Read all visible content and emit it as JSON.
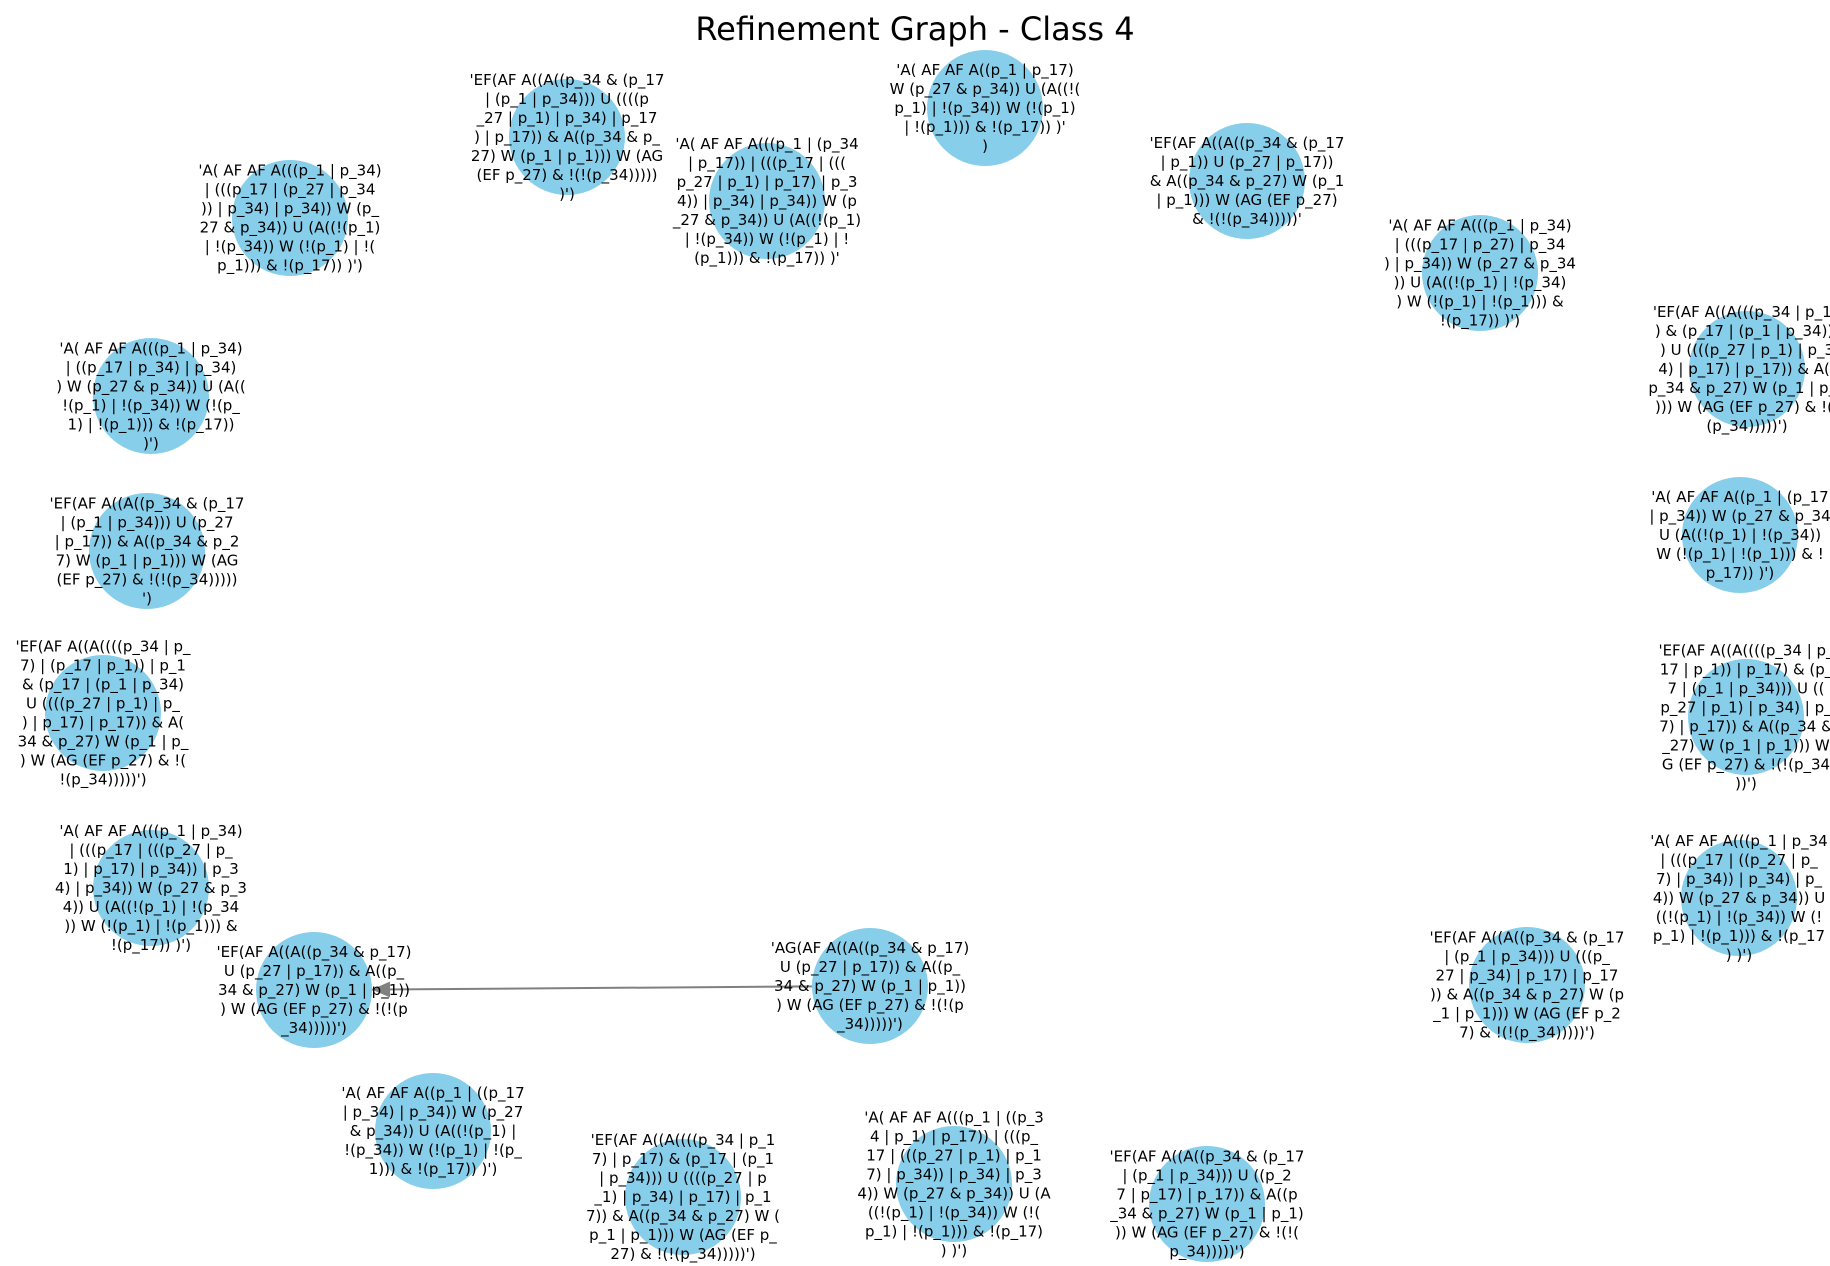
{
  "graph": {
    "title": "Refinement Graph - Class 4",
    "node_color": "#87ceeb",
    "edge_color": "#808080",
    "nodes": [
      {
        "id": "n0",
        "lines": [
          "'A( AF AF A((p_1 | p_17)",
          "W (p_27 & p_34)) U (A((!(",
          "p_1) | !(p_34)) W (!(p_1)",
          "| !(p_1))) & !(p_17)) )'",
          ")"
        ]
      },
      {
        "id": "n1",
        "lines": [
          "'EF(AF A((A((p_34 & (p_17",
          "| (p_1 | p_34))) U ((((p",
          "_27 | p_1) | p_34) | p_17",
          ") | p_17)) & A((p_34 & p_",
          "27) W (p_1 | p_1))) W (AG",
          "(EF p_27) & !(!(p_34)))))",
          ")')"
        ]
      },
      {
        "id": "n2",
        "lines": [
          "'A( AF AF A(((p_1 | (p_34",
          "| p_17)) | (((p_17 | (((",
          "p_27 | p_1) | p_17) | p_3",
          "4)) | p_34) | p_34)) W (p",
          "_27 & p_34)) U (A((!(p_1)",
          "| !(p_34)) W (!(p_1) | !",
          "(p_1))) & !(p_17)) )'"
        ]
      },
      {
        "id": "n3",
        "lines": [
          "'EF(AF A((A((p_34 & (p_17",
          "| p_1)) U (p_27 | p_17))",
          "& A((p_34 & p_27) W (p_1",
          "| p_1))) W (AG (EF p_27)",
          "& !(!(p_34)))))'"
        ]
      },
      {
        "id": "n4",
        "lines": [
          "'A( AF AF A(((p_1 | p_34)",
          "| (((p_17 | (p_27 | p_34",
          ")) | p_34) | p_34)) W (p_",
          "27 & p_34)) U (A((!(p_1)",
          "| !(p_34)) W (!(p_1) | !(",
          "p_1))) & !(p_17)) )')"
        ]
      },
      {
        "id": "n5",
        "lines": [
          "'A( AF AF A(((p_1 | p_34)",
          "| (((p_17 | p_27) | p_34",
          ") | p_34)) W (p_27 & p_34",
          ")) U (A((!(p_1) | !(p_34)",
          ") W (!(p_1) | !(p_1))) &",
          "!(p_17)) )')"
        ]
      },
      {
        "id": "n6",
        "lines": [
          "'EF(AF A((A(((p_34 | p_17",
          ") & (p_17 | (p_1 | p_34)))",
          ") U ((((p_27 | p_1) | p_3",
          "4) | p_17) | p_17)) & A((",
          "p_34 & p_27) W (p_1 | p_1",
          "))) W (AG (EF p_27) & !(!",
          "(p_34)))))')"
        ]
      },
      {
        "id": "n7",
        "lines": [
          "'A( AF AF A(((p_1 | p_34)",
          "| ((p_17 | p_34) | p_34)",
          ") W (p_27 & p_34)) U (A((",
          "!(p_1) | !(p_34)) W (!(p_",
          "1) | !(p_1))) & !(p_17))",
          ")')"
        ]
      },
      {
        "id": "n8",
        "lines": [
          "'A( AF AF A((p_1 | (p_17",
          "| p_34)) W (p_27 & p_34",
          "U (A((!(p_1) | !(p_34))",
          "W (!(p_1) | !(p_1))) & !",
          "p_17)) )')"
        ]
      },
      {
        "id": "n9",
        "lines": [
          "'EF(AF A((A((p_34 & (p_17",
          "| (p_1 | p_34))) U (p_27",
          "| p_17)) & A((p_34 & p_2",
          "7) W (p_1 | p_1))) W (AG",
          "(EF p_27) & !(!(p_34)))))",
          "')"
        ]
      },
      {
        "id": "n10",
        "lines": [
          "'EF(AF A((A((((p_34 | p_",
          "17 | p_1)) | p_17) & (p_",
          "7 | (p_1 | p_34))) U ((",
          "p_27 | p_1) | p_34) | p_",
          "7) | p_17)) & A((p_34 &",
          "_27) W (p_1 | p_1))) W",
          "G (EF p_27) & !(!(p_34",
          "))')"
        ]
      },
      {
        "id": "n11",
        "lines": [
          "'EF(AF A((A((((p_34 | p_",
          "7) | (p_17 | p_1)) | p_1",
          "& (p_17 | (p_1 | p_34)",
          "U ((((p_27 | p_1) | p_",
          ") | p_17) | p_17)) & A(",
          "34 & p_27) W (p_1 | p_",
          ") W (AG (EF p_27) & !(",
          "!(p_34)))))')"
        ]
      },
      {
        "id": "n12",
        "lines": [
          "'A( AF AF A(((p_1 | p_34",
          "| (((p_17 | ((p_27 | p_",
          "7) | p_34)) | p_34) | p_",
          "4)) W (p_27 & p_34)) U",
          "((!(p_1) | !(p_34)) W (!",
          "p_1) | !(p_1))) & !(p_17",
          ") )')"
        ]
      },
      {
        "id": "n13",
        "lines": [
          "'A( AF AF A(((p_1 | p_34)",
          "| (((p_17 | (((p_27 | p_",
          "1) | p_17) | p_34)) | p_3",
          "4) | p_34)) W (p_27 & p_3",
          "4)) U (A((!(p_1) | !(p_34",
          ")) W (!(p_1) | !(p_1))) &",
          "!(p_17)) )')"
        ]
      },
      {
        "id": "n14",
        "lines": [
          "'EF(AF A((A((p_34 & (p_17",
          "| (p_1 | p_34))) U (((p_",
          "27 | p_34) | p_17) | p_17",
          ")) & A((p_34 & p_27) W (p",
          "_1 | p_1))) W (AG (EF p_2",
          "7) & !(!(p_34)))))')"
        ]
      },
      {
        "id": "n15",
        "lines": [
          "'EF(AF A((A((p_34 & p_17)",
          "U (p_27 | p_17)) & A((p_",
          "34 & p_27) W (p_1 | p_1))",
          ") W (AG (EF p_27) & !(!(p",
          "_34)))))')"
        ]
      },
      {
        "id": "n16",
        "lines": [
          "'AG(AF A((A((p_34 & p_17)",
          "U (p_27 | p_17)) & A((p_",
          "34 & p_27) W (p_1 | p_1))",
          ") W (AG (EF p_27) & !(!(p",
          "_34)))))')"
        ]
      },
      {
        "id": "n17",
        "lines": [
          "'A( AF AF A((p_1 | ((p_17",
          "| p_34) | p_34)) W (p_27",
          "& p_34)) U (A((!(p_1) |",
          "!(p_34)) W (!(p_1) | !(p_",
          "1))) & !(p_17)) )')"
        ]
      },
      {
        "id": "n18",
        "lines": [
          "'EF(AF A((A((((p_34 | p_1",
          "7) | p_17) & (p_17 | (p_1",
          "| p_34))) U ((((p_27 | p",
          "_1) | p_34) | p_17) | p_1",
          "7)) & A((p_34 & p_27) W (",
          "p_1 | p_1))) W (AG (EF p_",
          "27) & !(!(p_34)))))')"
        ]
      },
      {
        "id": "n19",
        "lines": [
          "'A( AF AF A(((p_1 | ((p_3",
          "4 | p_1) | p_17)) | (((p_",
          "17 | (((p_27 | p_1) | p_1",
          "7) | p_34)) | p_34) | p_3",
          "4)) W (p_27 & p_34)) U (A",
          "((!(p_1) | !(p_34)) W (!(",
          "p_1) | !(p_1))) & !(p_17)",
          ") )')"
        ]
      },
      {
        "id": "n20",
        "lines": [
          "'EF(AF A((A((p_34 & (p_17",
          "| (p_1 | p_34))) U ((p_2",
          "7 | p_17) | p_17)) & A((p",
          "_34 & p_27) W (p_1 | p_1)",
          ")) W (AG (EF p_27) & !(!(",
          "p_34)))))')"
        ]
      }
    ],
    "edges": [
      {
        "source": "n16",
        "target": "n15",
        "directed": true
      }
    ]
  }
}
